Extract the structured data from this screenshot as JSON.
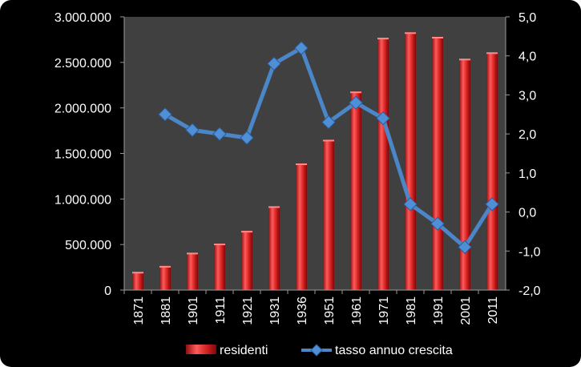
{
  "chart_data": {
    "type": "bar+line",
    "categories": [
      "1871",
      "1881",
      "1901",
      "1911",
      "1921",
      "1931",
      "1936",
      "1951",
      "1961",
      "1971",
      "1981",
      "1991",
      "2001",
      "2011"
    ],
    "series": [
      {
        "name": "residenti",
        "type": "bar",
        "axis": "left",
        "color": "#e02a2a",
        "values": [
          200000,
          265000,
          410000,
          510000,
          650000,
          920000,
          1390000,
          1650000,
          2180000,
          2770000,
          2830000,
          2780000,
          2540000,
          2610000
        ]
      },
      {
        "name": "tasso annuo crescita",
        "type": "line",
        "axis": "right",
        "color": "#4a86c8",
        "values": [
          null,
          2.5,
          2.1,
          2.0,
          1.9,
          3.8,
          4.2,
          2.3,
          2.8,
          2.4,
          0.2,
          -0.3,
          -0.9,
          0.2
        ]
      }
    ],
    "yleft": {
      "ylim": [
        0,
        3000000
      ],
      "ticks": [
        "0",
        "500.000",
        "1.000.000",
        "1.500.000",
        "2.000.000",
        "2.500.000",
        "3.000.000"
      ]
    },
    "yright": {
      "ylim": [
        -2.0,
        5.0
      ],
      "ticks": [
        "-2,0",
        "-1,0",
        "0,0",
        "1,0",
        "2,0",
        "3,0",
        "4,0",
        "5,0"
      ]
    },
    "plot_background": "#404040",
    "background": "#000000",
    "grid": false,
    "legend": "bottom"
  }
}
